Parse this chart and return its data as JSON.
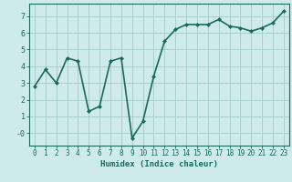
{
  "x": [
    0,
    1,
    2,
    3,
    4,
    5,
    6,
    7,
    8,
    9,
    10,
    11,
    12,
    13,
    14,
    15,
    16,
    17,
    18,
    19,
    20,
    21,
    22,
    23
  ],
  "y": [
    2.8,
    3.8,
    3.0,
    4.5,
    4.3,
    1.3,
    1.6,
    4.3,
    4.5,
    -0.3,
    0.7,
    3.4,
    5.5,
    6.2,
    6.5,
    6.5,
    6.5,
    6.8,
    6.4,
    6.3,
    6.1,
    6.3,
    6.6,
    7.3
  ],
  "line_color": "#1a6b5a",
  "marker": "D",
  "marker_size": 2.0,
  "bg_color": "#ceeaea",
  "grid_color": "#aacece",
  "xlabel": "Humidex (Indice chaleur)",
  "xlim": [
    -0.5,
    23.5
  ],
  "ylim": [
    -0.75,
    7.75
  ],
  "yticks": [
    0,
    1,
    2,
    3,
    4,
    5,
    6,
    7
  ],
  "ytick_labels": [
    "-0",
    "1",
    "2",
    "3",
    "4",
    "5",
    "6",
    "7"
  ],
  "xtick_labels": [
    "0",
    "1",
    "2",
    "3",
    "4",
    "5",
    "6",
    "7",
    "8",
    "9",
    "10",
    "11",
    "12",
    "13",
    "14",
    "15",
    "16",
    "17",
    "18",
    "19",
    "20",
    "21",
    "22",
    "23"
  ],
  "tick_color": "#1a6b5a",
  "label_color": "#1a6b5a",
  "linewidth": 1.2,
  "axis_color": "#1a6b5a",
  "tick_fontsize": 5.5,
  "xlabel_fontsize": 6.5
}
